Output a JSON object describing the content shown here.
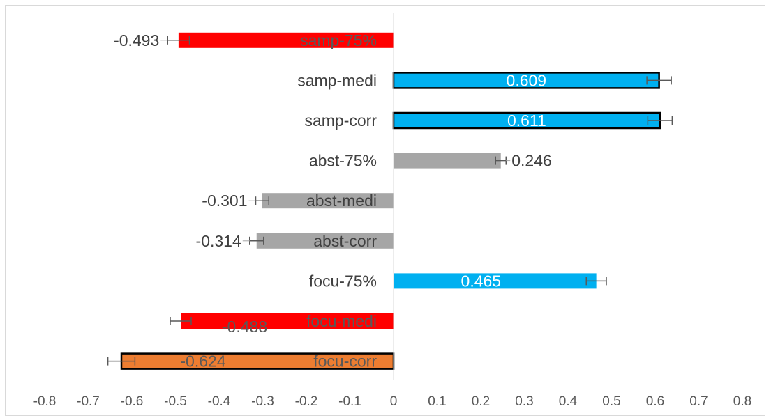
{
  "chart_data": {
    "type": "bar",
    "orientation": "horizontal",
    "title": "",
    "xlabel": "",
    "ylabel": "",
    "xlim": [
      -0.8,
      0.8
    ],
    "x_ticks": [
      "-0.8",
      "-0.7",
      "-0.6",
      "-0.5",
      "-0.4",
      "-0.3",
      "-0.2",
      "-0.1",
      "0",
      "0.1",
      "0.2",
      "0.3",
      "0.4",
      "0.5",
      "0.6",
      "0.7",
      "0.8"
    ],
    "grid": false,
    "legend": "none",
    "bars": [
      {
        "category": "samp-75%",
        "value": -0.493,
        "label": "-0.493",
        "error": 0.025,
        "color": "#ff0000",
        "outlined": false
      },
      {
        "category": "samp-medi",
        "value": 0.609,
        "label": "0.609",
        "error": 0.028,
        "color": "#00b0f0",
        "outlined": true
      },
      {
        "category": "samp-corr",
        "value": 0.611,
        "label": "0.611",
        "error": 0.028,
        "color": "#00b0f0",
        "outlined": true
      },
      {
        "category": "abst-75%",
        "value": 0.246,
        "label": "0.246",
        "error": 0.012,
        "color": "#a6a6a6",
        "outlined": false
      },
      {
        "category": "abst-medi",
        "value": -0.301,
        "label": "-0.301",
        "error": 0.015,
        "color": "#a6a6a6",
        "outlined": false
      },
      {
        "category": "abst-corr",
        "value": -0.314,
        "label": "-0.314",
        "error": 0.016,
        "color": "#a6a6a6",
        "outlined": false
      },
      {
        "category": "focu-75%",
        "value": 0.465,
        "label": "0.465",
        "error": 0.023,
        "color": "#00b0f0",
        "outlined": false
      },
      {
        "category": "focu-medi",
        "value": -0.488,
        "label": "-0.488",
        "error": 0.024,
        "color": "#ff0000",
        "outlined": false
      },
      {
        "category": "focu-corr",
        "value": -0.624,
        "label": "-0.624",
        "error": 0.031,
        "color": "#ed7d31",
        "outlined": true
      }
    ]
  }
}
